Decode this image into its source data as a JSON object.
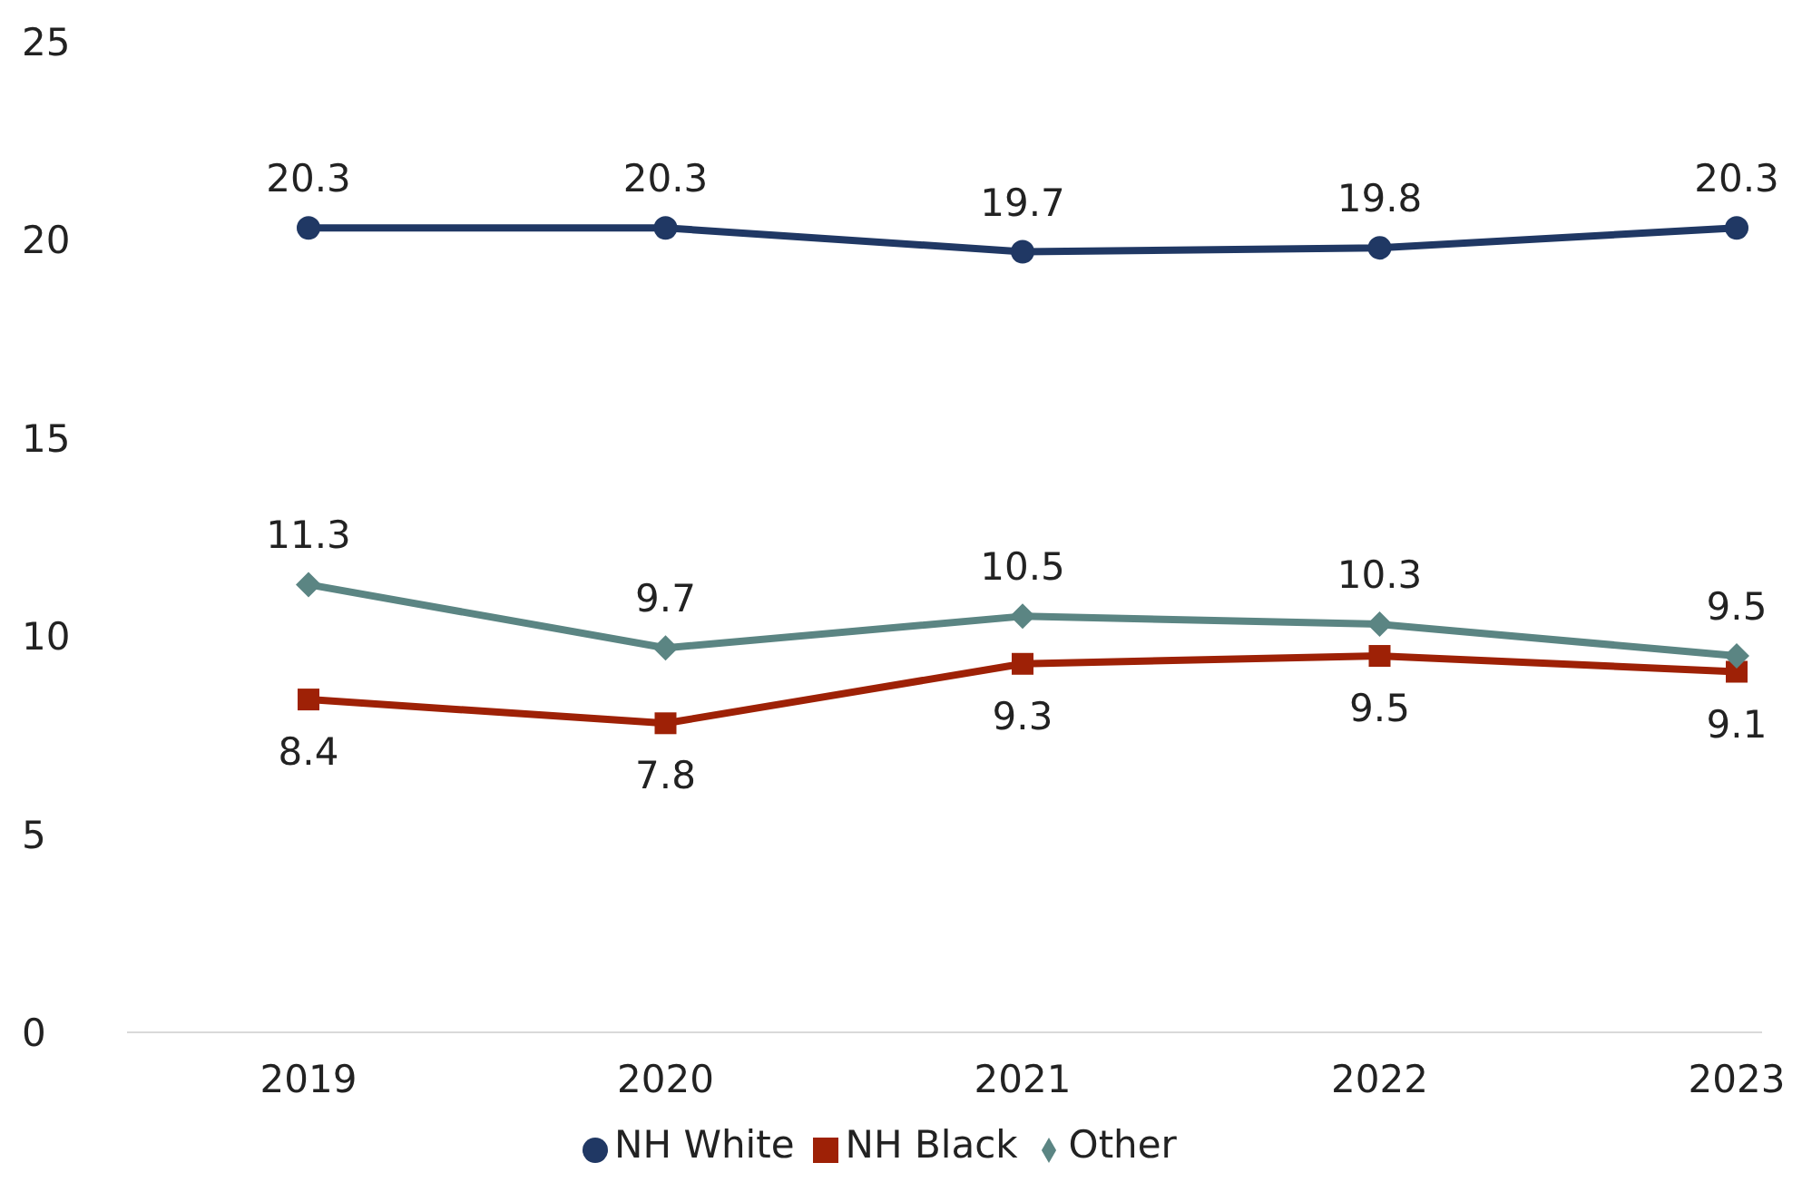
{
  "chart_data": {
    "type": "line",
    "categories": [
      "2019",
      "2020",
      "2021",
      "2022",
      "2023"
    ],
    "series": [
      {
        "name": "NH White",
        "color": "#203864",
        "marker": "circle",
        "values": [
          20.3,
          20.3,
          19.7,
          19.8,
          20.3
        ]
      },
      {
        "name": "NH Black",
        "color": "#9e2106",
        "marker": "square",
        "values": [
          8.4,
          7.8,
          9.3,
          9.5,
          9.1
        ]
      },
      {
        "name": "Other",
        "color": "#5b8583",
        "marker": "diamond",
        "values": [
          11.3,
          9.7,
          10.5,
          10.3,
          9.5
        ]
      }
    ],
    "ylim": [
      0,
      25
    ],
    "yticks": [
      0,
      5,
      10,
      15,
      20,
      25
    ],
    "grid": false,
    "legend": "bottom",
    "data_labels": true,
    "line_style": "solid"
  }
}
